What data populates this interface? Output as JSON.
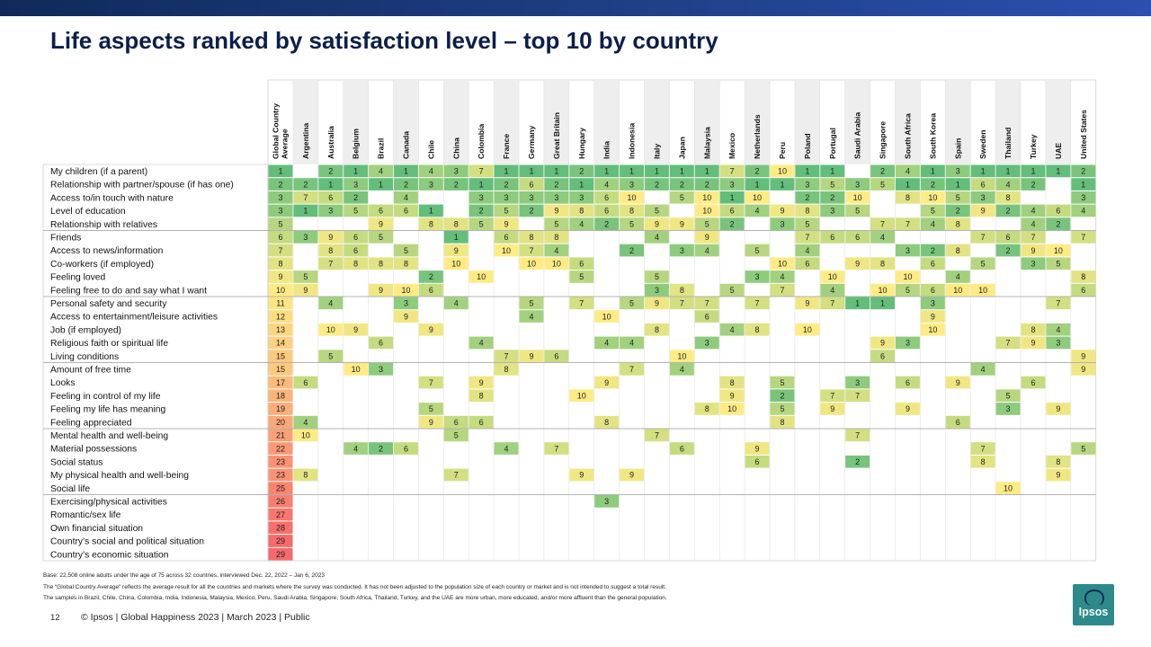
{
  "header": {
    "title": "Life aspects ranked by satisfaction level – top 10 by country"
  },
  "colors": {
    "top_bar": "#1f3f86",
    "rank_1": "#63be7b",
    "rank_5": "#b6d77f",
    "rank_10": "#ffeb84",
    "rank_29": "#f8696b",
    "alt_column_shade": "#eeeeee"
  },
  "chart_data": {
    "type": "heatmap",
    "columns": [
      "Global Country Average",
      "Argentina",
      "Australia",
      "Belgium",
      "Brazil",
      "Canada",
      "Chile",
      "China",
      "Colombia",
      "France",
      "Germany",
      "Great Britain",
      "Hungary",
      "India",
      "Indonesia",
      "Italy",
      "Japan",
      "Malaysia",
      "Mexico",
      "Netherlands",
      "Peru",
      "Poland",
      "Portugal",
      "Saudi Arabia",
      "Singapore",
      "South Africa",
      "South Korea",
      "Spain",
      "Sweden",
      "Thailand",
      "Turkey",
      "UAE",
      "United States"
    ],
    "rows": [
      {
        "label": "My children (if a parent)",
        "values": [
          1,
          null,
          2,
          1,
          4,
          1,
          4,
          3,
          7,
          1,
          1,
          1,
          2,
          1,
          1,
          1,
          1,
          1,
          7,
          2,
          10,
          1,
          1,
          null,
          2,
          4,
          1,
          3,
          1,
          1,
          1,
          1,
          2
        ]
      },
      {
        "label": "Relationship with partner/spouse (if has one)",
        "values": [
          2,
          2,
          1,
          3,
          1,
          2,
          3,
          2,
          1,
          2,
          6,
          2,
          1,
          4,
          3,
          2,
          2,
          2,
          3,
          1,
          1,
          3,
          5,
          3,
          5,
          1,
          2,
          1,
          6,
          4,
          2,
          null,
          1
        ]
      },
      {
        "label": "Access to/in touch with nature",
        "values": [
          3,
          7,
          6,
          2,
          null,
          4,
          null,
          null,
          3,
          3,
          3,
          3,
          3,
          6,
          10,
          null,
          5,
          10,
          1,
          10,
          null,
          2,
          2,
          10,
          null,
          8,
          10,
          5,
          3,
          8,
          null,
          null,
          3
        ]
      },
      {
        "label": "Level of education",
        "values": [
          3,
          1,
          3,
          5,
          6,
          6,
          1,
          null,
          2,
          5,
          2,
          9,
          8,
          6,
          8,
          5,
          null,
          10,
          6,
          4,
          9,
          8,
          3,
          5,
          null,
          null,
          5,
          2,
          9,
          2,
          4,
          6,
          4
        ]
      },
      {
        "label": "Relationship with relatives",
        "values": [
          5,
          null,
          null,
          null,
          9,
          null,
          8,
          8,
          5,
          9,
          null,
          5,
          4,
          2,
          5,
          9,
          9,
          5,
          2,
          null,
          3,
          5,
          null,
          null,
          7,
          7,
          4,
          8,
          null,
          null,
          4,
          2,
          null
        ]
      },
      {
        "label": "Friends",
        "values": [
          6,
          3,
          9,
          6,
          5,
          null,
          null,
          1,
          null,
          6,
          8,
          8,
          null,
          null,
          null,
          4,
          null,
          9,
          null,
          null,
          null,
          7,
          6,
          6,
          4,
          null,
          null,
          null,
          7,
          6,
          7,
          null,
          7
        ]
      },
      {
        "label": "Access to news/information",
        "values": [
          7,
          null,
          8,
          6,
          null,
          5,
          null,
          9,
          null,
          10,
          7,
          4,
          null,
          null,
          2,
          null,
          3,
          4,
          null,
          5,
          null,
          4,
          null,
          null,
          null,
          3,
          2,
          8,
          null,
          2,
          9,
          10,
          null
        ]
      },
      {
        "label": "Co-workers (if employed)",
        "values": [
          8,
          null,
          7,
          8,
          8,
          8,
          null,
          10,
          null,
          null,
          10,
          10,
          6,
          null,
          null,
          null,
          null,
          null,
          null,
          null,
          10,
          6,
          null,
          9,
          8,
          null,
          6,
          null,
          5,
          null,
          3,
          5,
          null
        ]
      },
      {
        "label": "Feeling loved",
        "values": [
          9,
          5,
          null,
          null,
          null,
          null,
          2,
          null,
          10,
          null,
          null,
          null,
          5,
          null,
          null,
          5,
          null,
          null,
          null,
          3,
          4,
          null,
          10,
          null,
          null,
          10,
          null,
          4,
          null,
          null,
          null,
          null,
          8
        ]
      },
      {
        "label": "Feeling free to do and say what I want",
        "values": [
          10,
          9,
          null,
          null,
          9,
          10,
          6,
          null,
          null,
          null,
          null,
          null,
          null,
          null,
          null,
          3,
          8,
          null,
          5,
          null,
          7,
          null,
          4,
          null,
          10,
          5,
          6,
          10,
          10,
          null,
          null,
          null,
          6
        ]
      },
      {
        "label": "Personal safety and security",
        "values": [
          11,
          null,
          4,
          null,
          null,
          3,
          null,
          4,
          null,
          null,
          5,
          null,
          7,
          null,
          5,
          9,
          7,
          7,
          null,
          7,
          null,
          9,
          7,
          1,
          1,
          null,
          3,
          null,
          null,
          null,
          null,
          7,
          null
        ]
      },
      {
        "label": "Access to entertainment/leisure activities",
        "values": [
          12,
          null,
          null,
          null,
          null,
          9,
          null,
          null,
          null,
          null,
          4,
          null,
          null,
          10,
          null,
          null,
          null,
          6,
          null,
          null,
          null,
          null,
          null,
          null,
          null,
          null,
          9,
          null,
          null,
          null,
          null,
          null,
          null
        ]
      },
      {
        "label": "Job (if employed)",
        "values": [
          13,
          null,
          10,
          9,
          null,
          null,
          9,
          null,
          null,
          null,
          null,
          null,
          null,
          null,
          null,
          8,
          null,
          null,
          4,
          8,
          null,
          10,
          null,
          null,
          null,
          null,
          10,
          null,
          null,
          null,
          8,
          4,
          null
        ]
      },
      {
        "label": "Religious faith or spiritual life",
        "values": [
          14,
          null,
          null,
          null,
          6,
          null,
          null,
          null,
          4,
          null,
          null,
          null,
          null,
          4,
          4,
          null,
          null,
          3,
          null,
          null,
          null,
          null,
          null,
          null,
          9,
          3,
          null,
          null,
          null,
          7,
          9,
          3,
          null
        ]
      },
      {
        "label": "Living conditions",
        "values": [
          15,
          null,
          5,
          null,
          null,
          null,
          null,
          null,
          null,
          7,
          9,
          6,
          null,
          null,
          null,
          null,
          10,
          null,
          null,
          null,
          null,
          null,
          null,
          null,
          6,
          null,
          null,
          null,
          null,
          null,
          null,
          null,
          9
        ]
      },
      {
        "label": "Amount of free time",
        "values": [
          15,
          null,
          null,
          10,
          3,
          null,
          null,
          null,
          null,
          8,
          null,
          null,
          null,
          null,
          7,
          null,
          4,
          null,
          null,
          null,
          null,
          null,
          null,
          null,
          null,
          null,
          null,
          null,
          4,
          null,
          null,
          null,
          9
        ]
      },
      {
        "label": "Looks",
        "values": [
          17,
          6,
          null,
          null,
          null,
          null,
          7,
          null,
          9,
          null,
          null,
          null,
          null,
          9,
          null,
          null,
          null,
          null,
          8,
          null,
          5,
          null,
          null,
          3,
          null,
          6,
          null,
          9,
          null,
          null,
          6,
          null,
          null
        ]
      },
      {
        "label": "Feeling in control of my life",
        "values": [
          18,
          null,
          null,
          null,
          null,
          null,
          null,
          null,
          8,
          null,
          null,
          null,
          10,
          null,
          null,
          null,
          null,
          null,
          9,
          null,
          2,
          null,
          7,
          7,
          null,
          null,
          null,
          null,
          null,
          5,
          null,
          null,
          null
        ]
      },
      {
        "label": "Feeling my life has meaning",
        "values": [
          19,
          null,
          null,
          null,
          null,
          null,
          5,
          null,
          null,
          null,
          null,
          null,
          null,
          null,
          null,
          null,
          null,
          8,
          10,
          null,
          5,
          null,
          9,
          null,
          null,
          9,
          null,
          null,
          null,
          3,
          null,
          9,
          null
        ]
      },
      {
        "label": "Feeling appreciated",
        "values": [
          20,
          4,
          null,
          null,
          null,
          null,
          9,
          6,
          6,
          null,
          null,
          null,
          null,
          8,
          null,
          null,
          null,
          null,
          null,
          null,
          8,
          null,
          null,
          null,
          null,
          null,
          null,
          6,
          null,
          null,
          null,
          null,
          null
        ]
      },
      {
        "label": "Mental health and well-being",
        "values": [
          21,
          10,
          null,
          null,
          null,
          null,
          null,
          5,
          null,
          null,
          null,
          null,
          null,
          null,
          null,
          7,
          null,
          null,
          null,
          null,
          null,
          null,
          null,
          7,
          null,
          null,
          null,
          null,
          null,
          null,
          null,
          null,
          null
        ]
      },
      {
        "label": "Material possessions",
        "values": [
          22,
          null,
          null,
          4,
          2,
          6,
          null,
          null,
          null,
          4,
          null,
          7,
          null,
          null,
          null,
          null,
          6,
          null,
          null,
          9,
          null,
          null,
          null,
          null,
          null,
          null,
          null,
          null,
          7,
          null,
          null,
          null,
          5
        ]
      },
      {
        "label": "Social status",
        "values": [
          23,
          null,
          null,
          null,
          null,
          null,
          null,
          null,
          null,
          null,
          null,
          null,
          null,
          null,
          null,
          null,
          null,
          null,
          null,
          6,
          null,
          null,
          null,
          2,
          null,
          null,
          null,
          null,
          8,
          null,
          null,
          8,
          null
        ]
      },
      {
        "label": "My physical health and well-being",
        "values": [
          23,
          8,
          null,
          null,
          null,
          null,
          null,
          7,
          null,
          null,
          null,
          null,
          9,
          null,
          9,
          null,
          null,
          null,
          null,
          null,
          null,
          null,
          null,
          null,
          null,
          null,
          null,
          null,
          null,
          null,
          null,
          9,
          null
        ]
      },
      {
        "label": "Social life",
        "values": [
          25,
          null,
          null,
          null,
          null,
          null,
          null,
          null,
          null,
          null,
          null,
          null,
          null,
          null,
          null,
          null,
          null,
          null,
          null,
          null,
          null,
          null,
          null,
          null,
          null,
          null,
          null,
          null,
          null,
          10,
          null,
          null,
          null
        ]
      },
      {
        "label": "Exercising/physical activities",
        "values": [
          26,
          null,
          null,
          null,
          null,
          null,
          null,
          null,
          null,
          null,
          null,
          null,
          null,
          3,
          null,
          null,
          null,
          null,
          null,
          null,
          null,
          null,
          null,
          null,
          null,
          null,
          null,
          null,
          null,
          null,
          null,
          null,
          null
        ]
      },
      {
        "label": "Romantic/sex life",
        "values": [
          27,
          null,
          null,
          null,
          null,
          null,
          null,
          null,
          null,
          null,
          null,
          null,
          null,
          null,
          null,
          null,
          null,
          null,
          null,
          null,
          null,
          null,
          null,
          null,
          null,
          null,
          null,
          null,
          null,
          null,
          null,
          null,
          null
        ]
      },
      {
        "label": "Own financial situation",
        "values": [
          28,
          null,
          null,
          null,
          null,
          null,
          null,
          null,
          null,
          null,
          null,
          null,
          null,
          null,
          null,
          null,
          null,
          null,
          null,
          null,
          null,
          null,
          null,
          null,
          null,
          null,
          null,
          null,
          null,
          null,
          null,
          null,
          null
        ]
      },
      {
        "label": "Country’s social and political situation",
        "values": [
          29,
          null,
          null,
          null,
          null,
          null,
          null,
          null,
          null,
          null,
          null,
          null,
          null,
          null,
          null,
          null,
          null,
          null,
          null,
          null,
          null,
          null,
          null,
          null,
          null,
          null,
          null,
          null,
          null,
          null,
          null,
          null,
          null
        ]
      },
      {
        "label": "Country’s economic situation",
        "values": [
          29,
          null,
          null,
          null,
          null,
          null,
          null,
          null,
          null,
          null,
          null,
          null,
          null,
          null,
          null,
          null,
          null,
          null,
          null,
          null,
          null,
          null,
          null,
          null,
          null,
          null,
          null,
          null,
          null,
          null,
          null,
          null,
          null
        ]
      }
    ]
  },
  "footnotes": {
    "base": "Base: 22,508 online adults under the age of 75 across 32 countries, interviewed Dec. 22, 2022 – Jan 6, 2023",
    "gca": "The “Global Country Average” reflects the average result for all the countries and markets where the survey was conducted. It has not been adjusted to the population size of each country or market and is not intended to suggest a total result.",
    "samples": "The samples in Brazil, Chile, China, Colombia, India, Indonesia, Malaysia, Mexico, Peru, Saudi Arabia, Singapore, South Africa, Thailand, Turkey, and the UAE are more urban, more educated, and/or more affluent than the general population."
  },
  "footer": {
    "page_number": "12",
    "text": "© Ipsos | Global Happiness 2023 | March 2023 | Public"
  },
  "logo": {
    "text": "Ipsos"
  }
}
